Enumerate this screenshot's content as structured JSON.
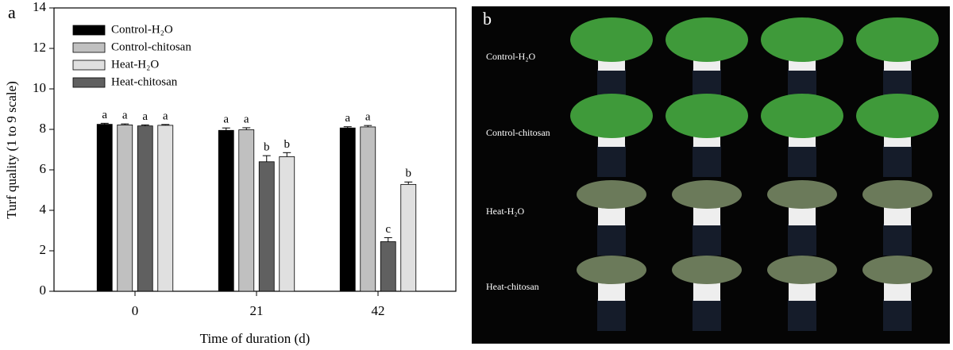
{
  "chart_data": {
    "type": "bar",
    "panel_label": "a",
    "y_label": "Turf quality (1 to 9 scale)",
    "x_label": "Time of duration (d)",
    "categories": [
      "0",
      "21",
      "42"
    ],
    "series": [
      {
        "name": "Control-H₂O",
        "color": "#000000",
        "values": [
          8.25,
          7.95,
          8.07
        ],
        "errors": [
          0.05,
          0.12,
          0.06
        ],
        "letters": [
          "a",
          "a",
          "a"
        ]
      },
      {
        "name": "Control-chitosan",
        "color": "#c0c0c0",
        "values": [
          8.22,
          7.98,
          8.12
        ],
        "errors": [
          0.05,
          0.1,
          0.07
        ],
        "letters": [
          "a",
          "a",
          "a"
        ]
      },
      {
        "name": "Heat-H₂O",
        "color": "#e0e0e0",
        "values": [
          8.2,
          6.65,
          5.28
        ],
        "errors": [
          0.04,
          0.2,
          0.12
        ],
        "letters": [
          "a",
          "b",
          "b"
        ]
      },
      {
        "name": "Heat-chitosan",
        "color": "#606060",
        "values": [
          8.17,
          6.4,
          2.45
        ],
        "errors": [
          0.05,
          0.3,
          0.2
        ],
        "letters": [
          "a",
          "b",
          "c"
        ]
      }
    ],
    "ylim": [
      0,
      14
    ],
    "yticks": [
      0,
      2,
      4,
      6,
      8,
      10,
      12,
      14
    ],
    "legend": "upper left"
  },
  "panel_b": {
    "panel_label": "b",
    "row_labels": [
      "Control-H₂O",
      "Control-chitosan",
      "Heat-H₂O",
      "Heat-chitosan"
    ]
  }
}
